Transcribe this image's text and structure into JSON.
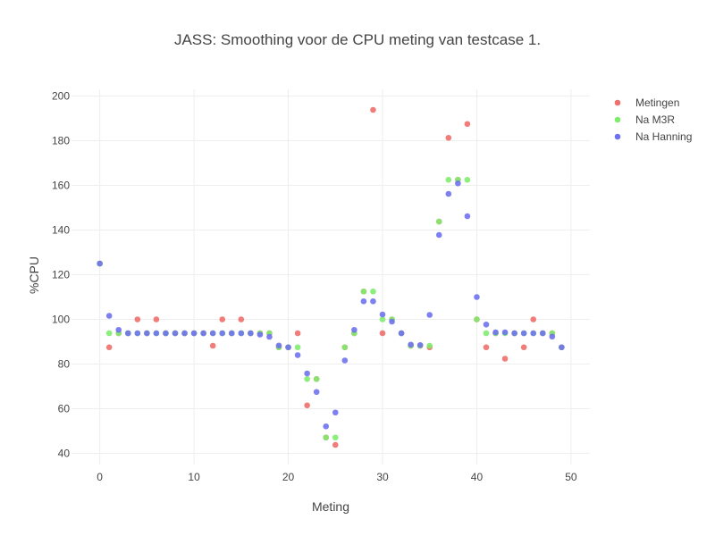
{
  "chart_data": {
    "type": "scatter",
    "title": "JASS: Smoothing voor de CPU meting van testcase 1.",
    "xlabel": "Meting",
    "ylabel": "%CPU",
    "xlim": [
      -3,
      52
    ],
    "ylim": [
      35,
      203
    ],
    "xticks": [
      0,
      10,
      20,
      30,
      40,
      50
    ],
    "yticks": [
      40,
      60,
      80,
      100,
      120,
      140,
      160,
      180,
      200
    ],
    "grid": true,
    "legend_position": "top-right",
    "x": [
      0,
      1,
      2,
      3,
      4,
      5,
      6,
      7,
      8,
      9,
      10,
      11,
      12,
      13,
      14,
      15,
      16,
      17,
      18,
      19,
      20,
      21,
      22,
      23,
      24,
      25,
      26,
      27,
      28,
      29,
      30,
      31,
      32,
      33,
      34,
      35,
      36,
      37,
      38,
      39,
      40,
      41,
      42,
      43,
      44,
      45,
      46,
      47,
      48,
      49
    ],
    "series": [
      {
        "name": "Metingen",
        "color": "#ef6f6c",
        "values": [
          125,
          87.5,
          93.8,
          93.8,
          100,
          93.8,
          100,
          93.8,
          93.8,
          93.8,
          93.8,
          93.8,
          88.2,
          100,
          93.8,
          100,
          93.8,
          93.8,
          93.8,
          87.5,
          87.5,
          93.8,
          61.5,
          73.3,
          47.1,
          43.8,
          87.5,
          93.8,
          112.5,
          193.8,
          93.8,
          100,
          93.8,
          88.2,
          88.2,
          87.5,
          143.8,
          181.3,
          162.5,
          187.5,
          100,
          87.5,
          93.8,
          82.4,
          93.8,
          87.5,
          100,
          93.8,
          93.8,
          87.5
        ]
      },
      {
        "name": "Na M3R",
        "color": "#7fec6e",
        "values": [
          125,
          93.8,
          93.8,
          93.8,
          93.8,
          93.8,
          93.8,
          93.8,
          93.8,
          93.8,
          93.8,
          93.8,
          93.8,
          93.8,
          93.8,
          93.8,
          93.8,
          93.8,
          93.8,
          87.5,
          87.5,
          87.5,
          73.3,
          73.3,
          47.1,
          47.1,
          87.5,
          93.8,
          112.5,
          112.5,
          100,
          100,
          93.8,
          88.2,
          88.2,
          88.2,
          143.8,
          162.5,
          162.5,
          162.5,
          100,
          93.8,
          93.8,
          93.8,
          93.8,
          93.8,
          93.8,
          93.8,
          93.8,
          87.5
        ]
      },
      {
        "name": "Na Hanning",
        "color": "#6f72ee",
        "values": [
          125,
          101.6,
          95.3,
          93.8,
          93.8,
          93.8,
          93.8,
          93.8,
          93.8,
          93.8,
          93.8,
          93.8,
          93.8,
          93.8,
          93.8,
          93.8,
          93.8,
          93.2,
          92.2,
          88.3,
          87.5,
          84.0,
          75.8,
          67.5,
          52.1,
          58.3,
          81.6,
          95.3,
          108.1,
          108.1,
          102.2,
          99.0,
          93.8,
          88.7,
          88.5,
          102.0,
          137.8,
          156.2,
          160.9,
          146.2,
          110.0,
          97.7,
          94.2,
          94.2,
          93.8,
          93.8,
          93.8,
          93.8,
          92.3,
          87.5
        ]
      }
    ]
  }
}
